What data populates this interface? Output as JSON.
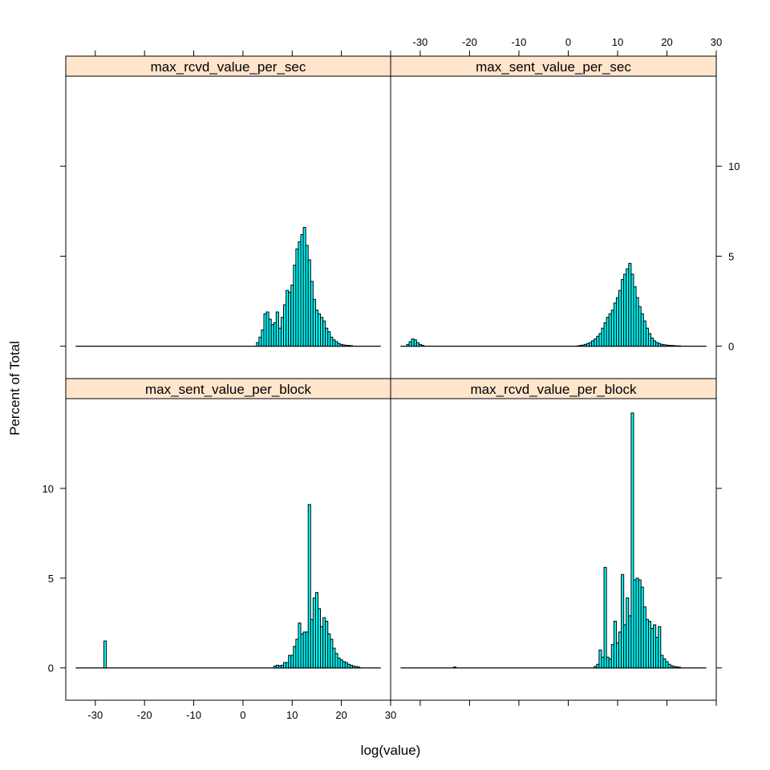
{
  "chart_data": {
    "type": "bar",
    "layout": "2x2 lattice histogram",
    "xlabel": "log(value)",
    "ylabel": "Percent of Total",
    "xlim": [
      -36,
      30
    ],
    "ylim": [
      -1.8,
      15
    ],
    "x_ticks": [
      -30,
      -20,
      -10,
      0,
      10,
      20,
      30
    ],
    "y_ticks": [
      0,
      5,
      10
    ],
    "bin_width": 0.5,
    "colors": {
      "bar_fill": "#00ffff",
      "bar_stroke": "#000000",
      "strip_bg": "#ffe5cc",
      "frame": "#000000"
    },
    "panels": [
      {
        "title": "max_rcvd_value_per_sec",
        "position": "top-left",
        "bins": [
          {
            "x": 3,
            "y": 0.2
          },
          {
            "x": 3.5,
            "y": 0.5
          },
          {
            "x": 4,
            "y": 0.9
          },
          {
            "x": 4.5,
            "y": 1.8
          },
          {
            "x": 5,
            "y": 1.9
          },
          {
            "x": 5.5,
            "y": 1.5
          },
          {
            "x": 6,
            "y": 1.2
          },
          {
            "x": 6.5,
            "y": 1.3
          },
          {
            "x": 7,
            "y": 1.9
          },
          {
            "x": 7.5,
            "y": 1.0
          },
          {
            "x": 8,
            "y": 1.6
          },
          {
            "x": 8.5,
            "y": 2.3
          },
          {
            "x": 9,
            "y": 3.1
          },
          {
            "x": 9.5,
            "y": 3.0
          },
          {
            "x": 10,
            "y": 3.4
          },
          {
            "x": 10.5,
            "y": 4.5
          },
          {
            "x": 11,
            "y": 5.4
          },
          {
            "x": 11.5,
            "y": 5.8
          },
          {
            "x": 12,
            "y": 6.2
          },
          {
            "x": 12.5,
            "y": 6.6
          },
          {
            "x": 13,
            "y": 5.6
          },
          {
            "x": 13.5,
            "y": 4.8
          },
          {
            "x": 14,
            "y": 3.6
          },
          {
            "x": 14.5,
            "y": 2.6
          },
          {
            "x": 15,
            "y": 2.0
          },
          {
            "x": 15.5,
            "y": 1.8
          },
          {
            "x": 16,
            "y": 1.6
          },
          {
            "x": 16.5,
            "y": 1.4
          },
          {
            "x": 17,
            "y": 1.0
          },
          {
            "x": 17.5,
            "y": 0.8
          },
          {
            "x": 18,
            "y": 0.5
          },
          {
            "x": 18.5,
            "y": 0.35
          },
          {
            "x": 19,
            "y": 0.25
          },
          {
            "x": 19.5,
            "y": 0.15
          },
          {
            "x": 20,
            "y": 0.1
          },
          {
            "x": 20.5,
            "y": 0.07
          },
          {
            "x": 21,
            "y": 0.05
          },
          {
            "x": 21.5,
            "y": 0.04
          },
          {
            "x": 22,
            "y": 0.03
          }
        ]
      },
      {
        "title": "max_sent_value_per_sec",
        "position": "top-right",
        "bins": [
          {
            "x": -32.5,
            "y": 0.1
          },
          {
            "x": -32,
            "y": 0.25
          },
          {
            "x": -31.5,
            "y": 0.4
          },
          {
            "x": -31,
            "y": 0.35
          },
          {
            "x": -30.5,
            "y": 0.2
          },
          {
            "x": -30,
            "y": 0.1
          },
          {
            "x": -29.5,
            "y": 0.05
          },
          {
            "x": 2,
            "y": 0.02
          },
          {
            "x": 2.5,
            "y": 0.04
          },
          {
            "x": 3,
            "y": 0.06
          },
          {
            "x": 3.5,
            "y": 0.1
          },
          {
            "x": 4,
            "y": 0.15
          },
          {
            "x": 4.5,
            "y": 0.2
          },
          {
            "x": 5,
            "y": 0.3
          },
          {
            "x": 5.5,
            "y": 0.4
          },
          {
            "x": 6,
            "y": 0.55
          },
          {
            "x": 6.5,
            "y": 0.7
          },
          {
            "x": 7,
            "y": 1.0
          },
          {
            "x": 7.5,
            "y": 1.3
          },
          {
            "x": 8,
            "y": 1.6
          },
          {
            "x": 8.5,
            "y": 1.8
          },
          {
            "x": 9,
            "y": 2.0
          },
          {
            "x": 9.5,
            "y": 2.4
          },
          {
            "x": 10,
            "y": 2.7
          },
          {
            "x": 10.5,
            "y": 3.1
          },
          {
            "x": 11,
            "y": 3.7
          },
          {
            "x": 11.5,
            "y": 4.0
          },
          {
            "x": 12,
            "y": 4.3
          },
          {
            "x": 12.5,
            "y": 4.6
          },
          {
            "x": 13,
            "y": 4.0
          },
          {
            "x": 13.5,
            "y": 3.3
          },
          {
            "x": 14,
            "y": 2.7
          },
          {
            "x": 14.5,
            "y": 2.2
          },
          {
            "x": 15,
            "y": 1.8
          },
          {
            "x": 15.5,
            "y": 1.4
          },
          {
            "x": 16,
            "y": 1.0
          },
          {
            "x": 16.5,
            "y": 0.7
          },
          {
            "x": 17,
            "y": 0.45
          },
          {
            "x": 17.5,
            "y": 0.3
          },
          {
            "x": 18,
            "y": 0.2
          },
          {
            "x": 18.5,
            "y": 0.15
          },
          {
            "x": 19,
            "y": 0.1
          },
          {
            "x": 19.5,
            "y": 0.08
          },
          {
            "x": 20,
            "y": 0.06
          },
          {
            "x": 20.5,
            "y": 0.05
          },
          {
            "x": 21,
            "y": 0.04
          },
          {
            "x": 21.5,
            "y": 0.03
          },
          {
            "x": 22,
            "y": 0.02
          },
          {
            "x": 22.5,
            "y": 0.02
          }
        ]
      },
      {
        "title": "max_sent_value_per_block",
        "position": "bottom-left",
        "bins": [
          {
            "x": -28,
            "y": 1.5
          },
          {
            "x": 6.5,
            "y": 0.1
          },
          {
            "x": 7,
            "y": 0.15
          },
          {
            "x": 7.5,
            "y": 0.12
          },
          {
            "x": 8,
            "y": 0.15
          },
          {
            "x": 8.5,
            "y": 0.3
          },
          {
            "x": 9,
            "y": 0.3
          },
          {
            "x": 9.5,
            "y": 0.7
          },
          {
            "x": 10,
            "y": 0.7
          },
          {
            "x": 10.5,
            "y": 1.2
          },
          {
            "x": 11,
            "y": 1.6
          },
          {
            "x": 11.5,
            "y": 2.5
          },
          {
            "x": 12,
            "y": 1.9
          },
          {
            "x": 12.5,
            "y": 2.0
          },
          {
            "x": 13,
            "y": 2.0
          },
          {
            "x": 13.5,
            "y": 9.1
          },
          {
            "x": 14,
            "y": 2.7
          },
          {
            "x": 14.5,
            "y": 3.9
          },
          {
            "x": 15,
            "y": 4.2
          },
          {
            "x": 15.5,
            "y": 3.3
          },
          {
            "x": 16,
            "y": 2.3
          },
          {
            "x": 16.5,
            "y": 2.8
          },
          {
            "x": 17,
            "y": 2.6
          },
          {
            "x": 17.5,
            "y": 1.9
          },
          {
            "x": 18,
            "y": 1.6
          },
          {
            "x": 18.5,
            "y": 1.1
          },
          {
            "x": 19,
            "y": 0.8
          },
          {
            "x": 19.5,
            "y": 0.55
          },
          {
            "x": 20,
            "y": 0.45
          },
          {
            "x": 20.5,
            "y": 0.35
          },
          {
            "x": 21,
            "y": 0.3
          },
          {
            "x": 21.5,
            "y": 0.2
          },
          {
            "x": 22,
            "y": 0.15
          },
          {
            "x": 22.5,
            "y": 0.1
          },
          {
            "x": 23,
            "y": 0.08
          },
          {
            "x": 23.5,
            "y": 0.05
          }
        ]
      },
      {
        "title": "max_rcvd_value_per_block",
        "position": "bottom-right",
        "bins": [
          {
            "x": -23,
            "y": 0.05
          },
          {
            "x": 5.5,
            "y": 0.08
          },
          {
            "x": 6,
            "y": 0.2
          },
          {
            "x": 6.5,
            "y": 1.0
          },
          {
            "x": 7,
            "y": 0.6
          },
          {
            "x": 7.5,
            "y": 5.6
          },
          {
            "x": 8,
            "y": 0.6
          },
          {
            "x": 8.5,
            "y": 0.5
          },
          {
            "x": 9,
            "y": 1.3
          },
          {
            "x": 9.5,
            "y": 2.6
          },
          {
            "x": 10,
            "y": 1.4
          },
          {
            "x": 10.5,
            "y": 2.0
          },
          {
            "x": 11,
            "y": 5.2
          },
          {
            "x": 11.5,
            "y": 2.4
          },
          {
            "x": 12,
            "y": 3.9
          },
          {
            "x": 12.5,
            "y": 2.9
          },
          {
            "x": 13,
            "y": 14.2
          },
          {
            "x": 13.5,
            "y": 4.9
          },
          {
            "x": 14,
            "y": 5.0
          },
          {
            "x": 14.5,
            "y": 4.9
          },
          {
            "x": 15,
            "y": 4.5
          },
          {
            "x": 15.5,
            "y": 3.4
          },
          {
            "x": 16,
            "y": 2.7
          },
          {
            "x": 16.5,
            "y": 2.6
          },
          {
            "x": 17,
            "y": 2.2
          },
          {
            "x": 17.5,
            "y": 2.4
          },
          {
            "x": 18,
            "y": 1.7
          },
          {
            "x": 18.5,
            "y": 2.3
          },
          {
            "x": 19,
            "y": 0.7
          },
          {
            "x": 19.5,
            "y": 0.5
          },
          {
            "x": 20,
            "y": 0.35
          },
          {
            "x": 20.5,
            "y": 0.2
          },
          {
            "x": 21,
            "y": 0.12
          },
          {
            "x": 21.5,
            "y": 0.08
          },
          {
            "x": 22,
            "y": 0.06
          },
          {
            "x": 22.5,
            "y": 0.04
          }
        ]
      }
    ]
  }
}
